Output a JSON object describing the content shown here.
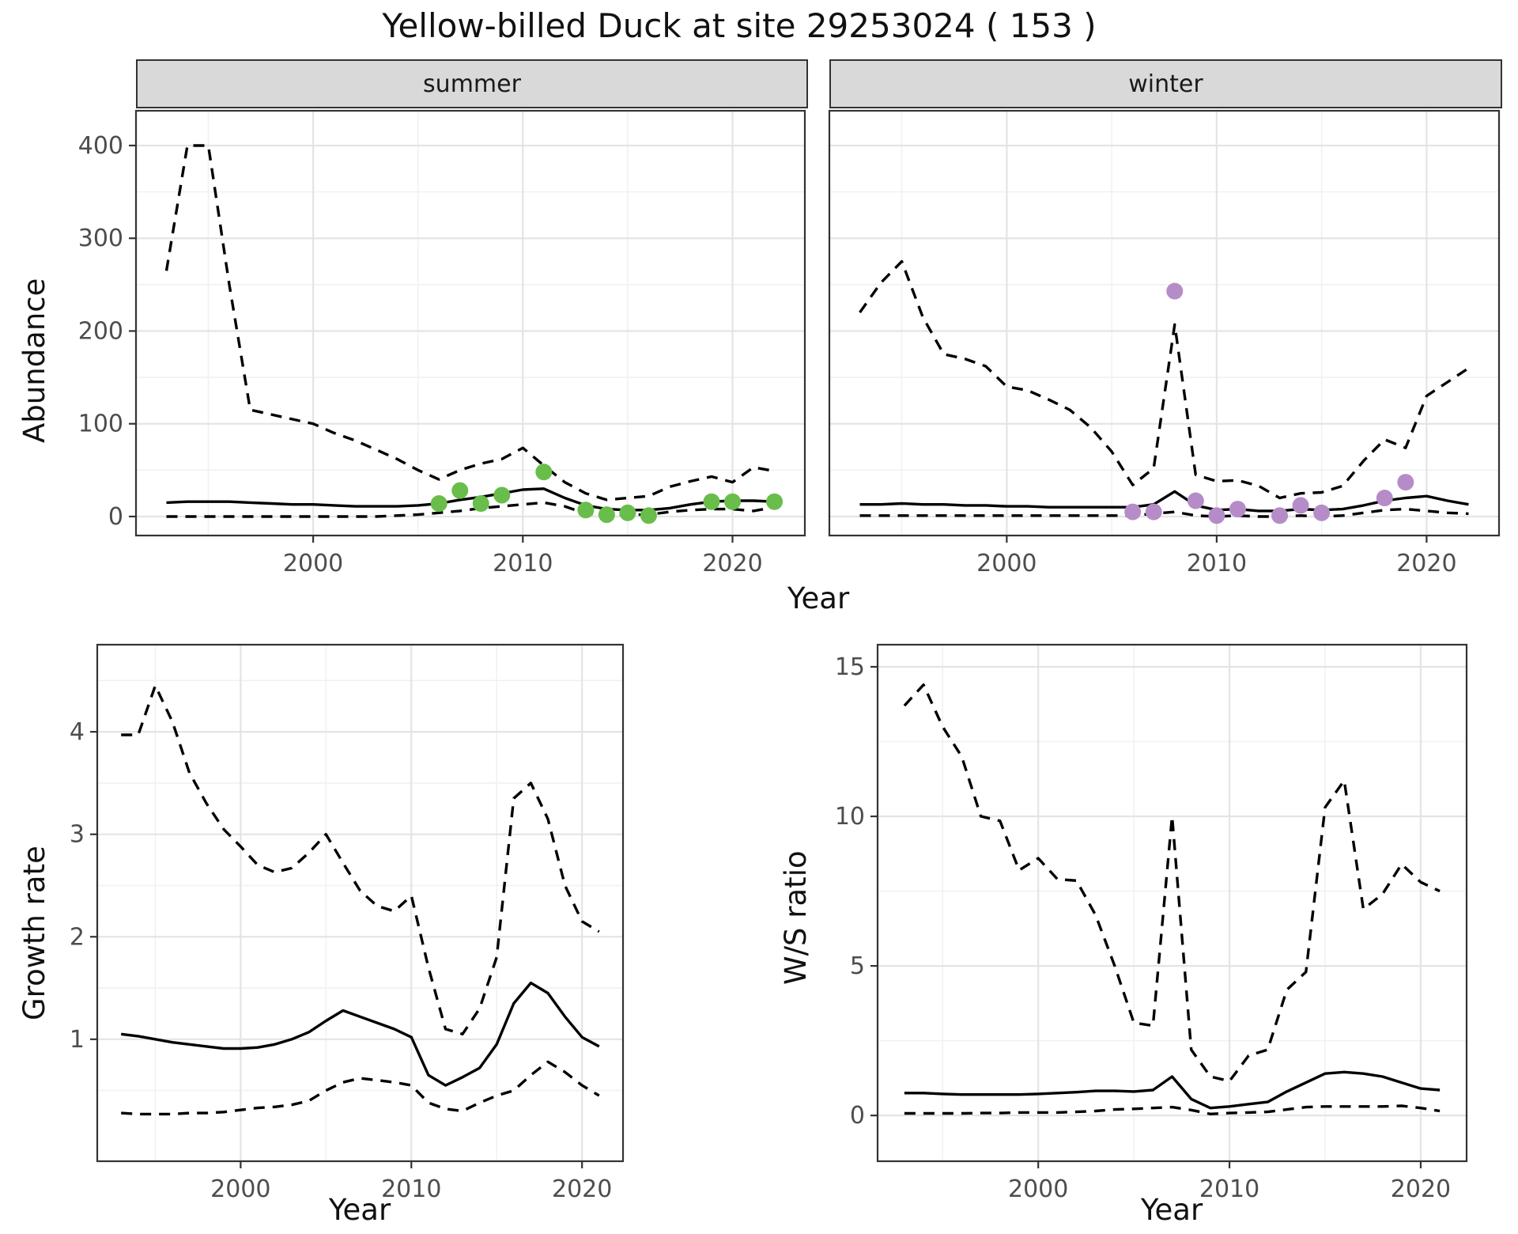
{
  "title": "Yellow-billed Duck at site 29253024 ( 153 )",
  "facets": [
    {
      "label": "summer"
    },
    {
      "label": "winter"
    }
  ],
  "axis_titles": {
    "abundance": "Abundance",
    "year_top": "Year",
    "growth": "Growth rate",
    "year_growth": "Year",
    "ws": "W/S ratio",
    "year_ws": "Year"
  },
  "colors": {
    "summer_points": "#69bd4a",
    "winter_points": "#b68cc8",
    "line": "#000000",
    "strip_bg": "#d9d9d9",
    "panel_border": "#333333",
    "grid_major": "#e4e4e4",
    "grid_minor": "#f1f1f1",
    "tick_text": "#4d4d4d"
  },
  "chart_data": [
    {
      "id": "abundance-summer",
      "type": "line",
      "facet": "summer",
      "ylabel": "Abundance",
      "xlabel": "Year",
      "grid": true,
      "legend": "none",
      "xlim": [
        1991.55,
        2023.45
      ],
      "ylim": [
        -20.5,
        437.5
      ],
      "xticks": {
        "values": [
          2000,
          2010,
          2020
        ],
        "labels": [
          "2000",
          "2010",
          "2020"
        ]
      },
      "xminor": [
        1995,
        2005,
        2015
      ],
      "yticks": {
        "values": [
          0,
          100,
          200,
          300,
          400
        ],
        "labels": [
          "0",
          "100",
          "200",
          "300",
          "400"
        ]
      },
      "yminor": [
        50,
        150,
        250,
        350
      ],
      "show_y_labels": true,
      "years": [
        1993,
        1994,
        1995,
        1996,
        1997,
        1998,
        1999,
        2000,
        2001,
        2002,
        2003,
        2004,
        2005,
        2006,
        2007,
        2008,
        2009,
        2010,
        2011,
        2012,
        2013,
        2014,
        2015,
        2016,
        2017,
        2018,
        2019,
        2020,
        2021,
        2022
      ],
      "upper_ci": [
        265,
        400,
        400,
        250,
        115,
        110,
        105,
        100,
        90,
        82,
        72,
        62,
        50,
        40,
        50,
        57,
        62,
        74,
        55,
        37,
        25,
        18,
        20,
        22,
        32,
        38,
        43,
        37,
        53,
        49
      ],
      "median": [
        15,
        16,
        16,
        16,
        15,
        14,
        13,
        13,
        12,
        11,
        11,
        11,
        12,
        14,
        18,
        21,
        25,
        29,
        30,
        20,
        12,
        8,
        7,
        7,
        9,
        13,
        16,
        17,
        17,
        16
      ],
      "lower_ci": [
        0,
        0,
        0,
        0,
        0,
        0,
        0,
        0,
        0,
        0,
        0,
        1,
        2,
        4,
        6,
        9,
        11,
        13,
        15,
        11,
        3,
        2,
        2,
        2,
        5,
        7,
        8,
        8,
        6,
        10
      ],
      "observations": {
        "years": [
          2006,
          2007,
          2008,
          2009,
          2011,
          2013,
          2014,
          2015,
          2016,
          2019,
          2020,
          2022
        ],
        "values": [
          14,
          28,
          14,
          23,
          48,
          7,
          2,
          4,
          1,
          16,
          16,
          16
        ]
      },
      "point_color": "#69bd4a"
    },
    {
      "id": "abundance-winter",
      "type": "line",
      "facet": "winter",
      "ylabel": "Abundance",
      "xlabel": "Year",
      "grid": true,
      "legend": "none",
      "xlim": [
        1991.55,
        2023.45
      ],
      "ylim": [
        -20.5,
        437.5
      ],
      "xticks": {
        "values": [
          2000,
          2010,
          2020
        ],
        "labels": [
          "2000",
          "2010",
          "2020"
        ]
      },
      "xminor": [
        1995,
        2005,
        2015
      ],
      "yticks": {
        "values": [
          0,
          100,
          200,
          300,
          400
        ],
        "labels": [
          "0",
          "100",
          "200",
          "300",
          "400"
        ]
      },
      "yminor": [
        50,
        150,
        250,
        350
      ],
      "show_y_labels": false,
      "years": [
        1993,
        1994,
        1995,
        1996,
        1997,
        1998,
        1999,
        2000,
        2001,
        2002,
        2003,
        2004,
        2005,
        2006,
        2007,
        2008,
        2009,
        2010,
        2011,
        2012,
        2013,
        2014,
        2015,
        2016,
        2017,
        2018,
        2019,
        2020,
        2021,
        2022
      ],
      "upper_ci": [
        220,
        252,
        275,
        215,
        175,
        170,
        162,
        140,
        136,
        126,
        115,
        96,
        70,
        34,
        52,
        207,
        45,
        38,
        39,
        33,
        20,
        25,
        26,
        33,
        60,
        83,
        74,
        130,
        145,
        160
      ],
      "median": [
        13,
        13,
        14,
        13,
        13,
        12,
        12,
        11,
        11,
        10,
        10,
        10,
        10,
        10,
        13,
        27,
        12,
        7,
        8,
        6,
        6,
        8,
        7,
        8,
        12,
        17,
        20,
        22,
        17,
        13
      ],
      "lower_ci": [
        1,
        1,
        1,
        1,
        1,
        1,
        1,
        1,
        1,
        1,
        1,
        1,
        1,
        1,
        3,
        5,
        1,
        0,
        1,
        0,
        0,
        1,
        0,
        1,
        4,
        7,
        8,
        6,
        4,
        3
      ],
      "observations": {
        "years": [
          2006,
          2007,
          2008,
          2009,
          2010,
          2011,
          2013,
          2014,
          2015,
          2018,
          2019
        ],
        "values": [
          5,
          5,
          243,
          17,
          1,
          8,
          1,
          12,
          4,
          20,
          37
        ]
      },
      "point_color": "#b68cc8"
    },
    {
      "id": "growth-rate",
      "type": "line",
      "facet": null,
      "ylabel": "Growth rate",
      "xlabel": "Year",
      "grid": true,
      "legend": "none",
      "xlim": [
        1991.6,
        2022.4
      ],
      "ylim": [
        -0.19,
        4.85
      ],
      "xticks": {
        "values": [
          2000,
          2010,
          2020
        ],
        "labels": [
          "2000",
          "2010",
          "2020"
        ]
      },
      "xminor": [
        1995,
        2005,
        2015
      ],
      "yticks": {
        "values": [
          1,
          2,
          3,
          4
        ],
        "labels": [
          "1",
          "2",
          "3",
          "4"
        ]
      },
      "yminor": [
        0.5,
        1.5,
        2.5,
        3.5,
        4.5
      ],
      "show_y_labels": true,
      "years": [
        1993,
        1994,
        1995,
        1996,
        1997,
        1998,
        1999,
        2000,
        2001,
        2002,
        2003,
        2004,
        2005,
        2006,
        2007,
        2008,
        2009,
        2010,
        2011,
        2012,
        2013,
        2014,
        2015,
        2016,
        2017,
        2018,
        2019,
        2020,
        2021
      ],
      "upper_ci": [
        3.97,
        3.97,
        4.45,
        4.1,
        3.6,
        3.3,
        3.05,
        2.88,
        2.7,
        2.63,
        2.67,
        2.82,
        3.0,
        2.72,
        2.45,
        2.3,
        2.25,
        2.4,
        1.7,
        1.1,
        1.05,
        1.3,
        1.8,
        3.35,
        3.5,
        3.15,
        2.5,
        2.15,
        2.05
      ],
      "median": [
        1.05,
        1.03,
        1.0,
        0.97,
        0.95,
        0.93,
        0.91,
        0.91,
        0.92,
        0.95,
        1.0,
        1.07,
        1.18,
        1.28,
        1.22,
        1.16,
        1.1,
        1.02,
        0.65,
        0.55,
        0.63,
        0.72,
        0.95,
        1.35,
        1.55,
        1.45,
        1.22,
        1.02,
        0.93
      ],
      "lower_ci": [
        0.28,
        0.27,
        0.27,
        0.27,
        0.28,
        0.28,
        0.29,
        0.31,
        0.33,
        0.34,
        0.36,
        0.4,
        0.5,
        0.58,
        0.62,
        0.6,
        0.58,
        0.55,
        0.38,
        0.32,
        0.3,
        0.38,
        0.45,
        0.5,
        0.65,
        0.78,
        0.68,
        0.55,
        0.45
      ],
      "observations": {
        "years": [],
        "values": []
      },
      "point_color": null
    },
    {
      "id": "ws-ratio",
      "type": "line",
      "facet": null,
      "ylabel": "W/S ratio",
      "xlabel": "Year",
      "grid": true,
      "legend": "none",
      "xlim": [
        1991.6,
        2022.4
      ],
      "ylim": [
        -1.53,
        15.74
      ],
      "xticks": {
        "values": [
          2000,
          2010,
          2020
        ],
        "labels": [
          "2000",
          "2010",
          "2020"
        ]
      },
      "xminor": [
        1995,
        2005,
        2015
      ],
      "yticks": {
        "values": [
          0,
          5,
          10,
          15
        ],
        "labels": [
          "0",
          "5",
          "10",
          "15"
        ]
      },
      "yminor": [
        2.5,
        7.5,
        12.5
      ],
      "show_y_labels": true,
      "years": [
        1993,
        1994,
        1995,
        1996,
        1997,
        1998,
        1999,
        2000,
        2001,
        2002,
        2003,
        2004,
        2005,
        2006,
        2007,
        2008,
        2009,
        2010,
        2011,
        2012,
        2013,
        2014,
        2015,
        2016,
        2017,
        2018,
        2019,
        2020,
        2021
      ],
      "upper_ci": [
        13.7,
        14.4,
        13.0,
        12.0,
        10.0,
        9.85,
        8.2,
        8.6,
        7.9,
        7.85,
        6.7,
        5.0,
        3.1,
        3.0,
        10.0,
        2.2,
        1.3,
        1.15,
        2.0,
        2.2,
        4.2,
        4.8,
        10.3,
        11.2,
        6.9,
        7.4,
        8.4,
        7.8,
        7.5
      ],
      "median": [
        0.75,
        0.75,
        0.72,
        0.7,
        0.7,
        0.7,
        0.7,
        0.72,
        0.75,
        0.78,
        0.82,
        0.82,
        0.8,
        0.85,
        1.3,
        0.55,
        0.25,
        0.3,
        0.38,
        0.45,
        0.8,
        1.1,
        1.4,
        1.45,
        1.4,
        1.3,
        1.1,
        0.9,
        0.85
      ],
      "lower_ci": [
        0.07,
        0.07,
        0.07,
        0.07,
        0.08,
        0.08,
        0.1,
        0.1,
        0.1,
        0.12,
        0.15,
        0.2,
        0.22,
        0.25,
        0.28,
        0.18,
        0.05,
        0.08,
        0.1,
        0.12,
        0.2,
        0.28,
        0.3,
        0.3,
        0.3,
        0.3,
        0.32,
        0.25,
        0.15
      ],
      "observations": {
        "years": [],
        "values": []
      },
      "point_color": null
    }
  ]
}
